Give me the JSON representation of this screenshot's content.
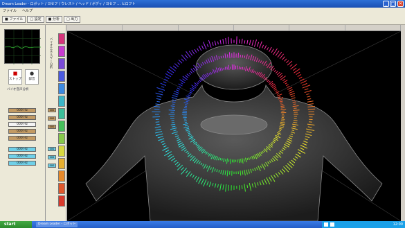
{
  "window": {
    "title": "Dream Leader - ロボット / ヨセフ / ウレスト / ヘッド / ボディ / ヨセフ … ヒロフト",
    "min_glyph": "_",
    "max_glyph": "□",
    "close_glyph": "✕"
  },
  "menu": [
    "ファイル",
    "ヘルプ"
  ],
  "toolbar": [
    "■ ファイル",
    "□ 設定",
    "■ 分析",
    "□ 出力"
  ],
  "left_panel": {
    "controls": [
      {
        "glyph": "■",
        "label": "ストップ"
      },
      {
        "glyph": "●",
        "label": "録音"
      }
    ],
    "caption": "バイオ音声分析",
    "buttons_brown": [
      "000 Hz",
      "000 Hz",
      "000 Hz",
      "000 Hz"
    ],
    "buttons_white": [
      "000 Hz"
    ],
    "buttons_cyan": [
      "000 Hz",
      "000 Hz",
      "000 Hz"
    ]
  },
  "color_strip": {
    "vertical_label": "バイオエネルギー分析",
    "swatches": [
      "#d8347b",
      "#c93bd0",
      "#7a4ad8",
      "#4b5ae0",
      "#3c8ae2",
      "#3cb6c8",
      "#3cc09a",
      "#45c05a",
      "#86c84a",
      "#d8d840",
      "#e8b030",
      "#e88a2a",
      "#e0582c",
      "#d83a2c"
    ],
    "side_buttons": [
      "000",
      "000",
      "000",
      "000",
      "000",
      "000"
    ]
  },
  "viewport": {
    "header": [
      "",
      "",
      "",
      "",
      "",
      ""
    ],
    "rings": [
      {
        "name": "outer",
        "radius": 110,
        "amplitude": 9
      },
      {
        "name": "middle",
        "radius": 88,
        "amplitude": 7
      },
      {
        "name": "inner",
        "radius": 70,
        "amplitude": 6
      }
    ]
  },
  "taskbar": {
    "start": "start",
    "tasks": [
      "Dream Leader - ロボット"
    ],
    "clock": "12:00"
  }
}
